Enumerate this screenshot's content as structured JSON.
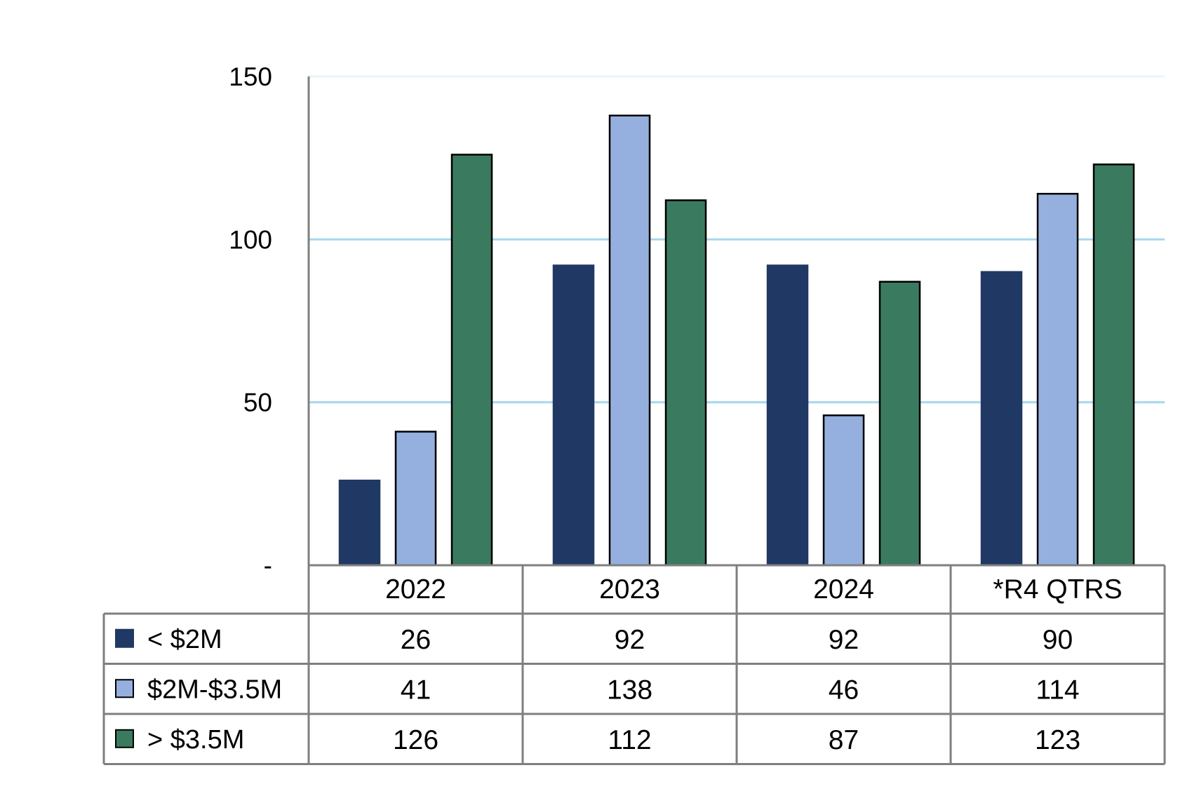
{
  "chart_data": {
    "type": "bar",
    "title": "",
    "xlabel": "",
    "ylabel": "",
    "ylim": [
      0,
      150
    ],
    "y_ticks": [
      {
        "value": 0,
        "label": "-"
      },
      {
        "value": 50,
        "label": "50"
      },
      {
        "value": 100,
        "label": "100"
      },
      {
        "value": 150,
        "label": "150"
      }
    ],
    "grid": true,
    "legend": "data-table-left",
    "categories": [
      "2022",
      "2023",
      "2024",
      "*R4 QTRS"
    ],
    "series": [
      {
        "name": "< $2M",
        "color": "#203864",
        "values": [
          26,
          92,
          92,
          90
        ]
      },
      {
        "name": "$2M-$3.5M",
        "color": "#95b0de",
        "values": [
          41,
          138,
          46,
          114
        ]
      },
      {
        "name": "> $3.5M",
        "color": "#3a7b5f",
        "values": [
          126,
          112,
          87,
          123
        ]
      }
    ],
    "gridline_color": "#a6d8ee",
    "table_border_color": "#7f7f7f"
  }
}
